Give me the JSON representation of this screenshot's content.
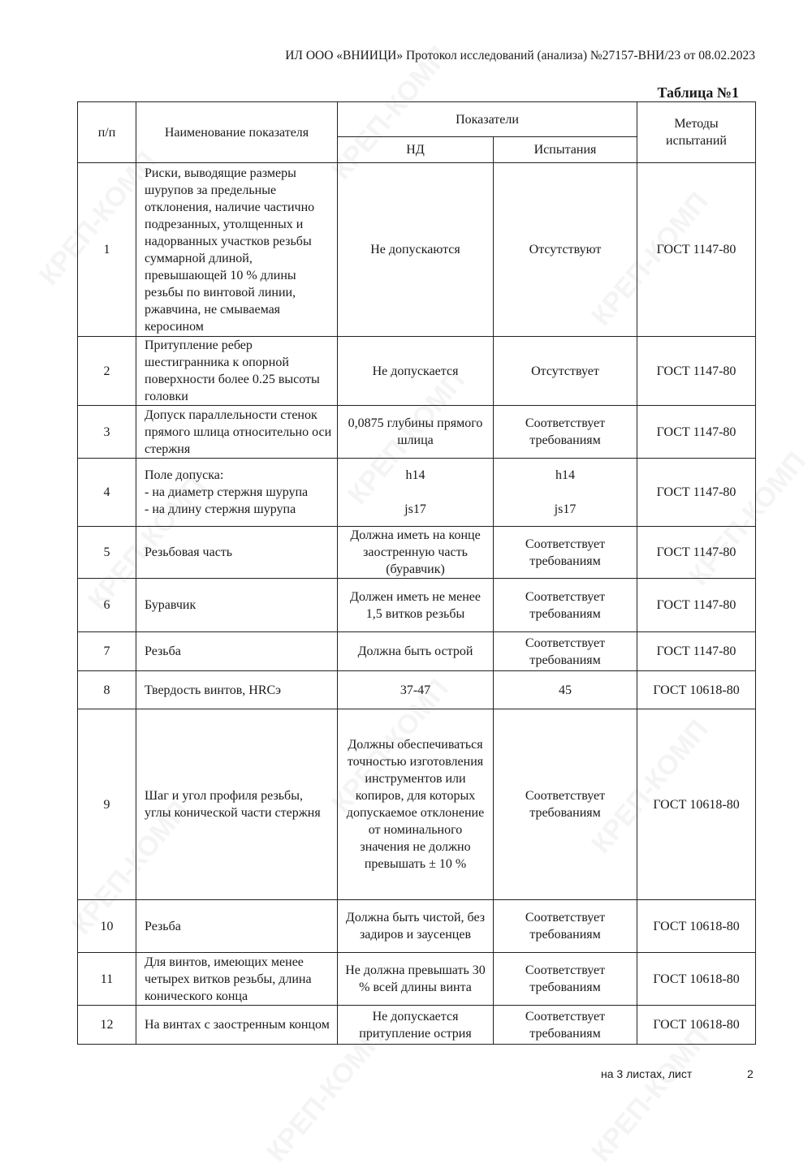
{
  "watermark": "КРЕП-КОМП",
  "header": "ИЛ ООО «ВНИИЦИ» Протокол исследований (анализа)  №27157-ВНИ/23 от  08.02.2023",
  "table_title": "Таблица №1",
  "columns": {
    "num": "п/п",
    "name": "Наименование показателя",
    "indicators": "Показатели",
    "nd": "НД",
    "test": "Испытания",
    "methods": "Методы испытаний"
  },
  "rows": [
    {
      "num": "1",
      "name": "Риски, выводящие размеры шурупов за предельные отклонения, наличие частично подрезанных, утолщенных и надорванных участков резьбы суммарной длиной, превышающей 10 % длины резьбы по винтовой линии, ржавчина, не смываемая керосином",
      "nd": "Не допускаются",
      "test": "Отсутствуют",
      "method": "ГОСТ 1147-80"
    },
    {
      "num": "2",
      "name": "Притупление ребер шестигранника к опорной поверхности более 0.25 высоты головки",
      "nd": "Не допускается",
      "test": "Отсутствует",
      "method": "ГОСТ 1147-80"
    },
    {
      "num": "3",
      "name": "Допуск параллельности стенок прямого шлица относительно оси стержня",
      "nd": "0,0875 глубины прямого шлица",
      "test": "Соответствует требованиям",
      "method": "ГОСТ 1147-80"
    },
    {
      "num": "4",
      "name": "Поле допуска:\n- на диаметр стержня шурупа\n- на длину стержня шурупа",
      "nd": "h14\n\njs17",
      "test": "h14\n\njs17",
      "method": "ГОСТ 1147-80"
    },
    {
      "num": "5",
      "name": "Резьбовая часть",
      "nd": "Должна иметь на конце заостренную часть (буравчик)",
      "test": "Соответствует требованиям",
      "method": "ГОСТ 1147-80"
    },
    {
      "num": "6",
      "name": "Буравчик",
      "nd": "Должен иметь не менее 1,5 витков резьбы",
      "test": "Соответствует требованиям",
      "method": "ГОСТ 1147-80"
    },
    {
      "num": "7",
      "name": "Резьба",
      "nd": "Должна быть острой",
      "test": "Соответствует требованиям",
      "method": "ГОСТ 1147-80"
    },
    {
      "num": "8",
      "name": "Твердость винтов, HRCэ",
      "nd": "37-47",
      "test": "45",
      "method": "ГОСТ 10618-80"
    },
    {
      "num": "9",
      "name": "Шаг и угол профиля резьбы, углы конической части стержня",
      "nd": "Должны обеспечиваться точностью изготовления инструментов или копиров, для которых допускаемое отклонение от номинального значения не должно превышать ± 10 %",
      "test": "Соответствует требованиям",
      "method": "ГОСТ 10618-80"
    },
    {
      "num": "10",
      "name": "Резьба",
      "nd": "Должна быть чистой, без задиров и заусенцев",
      "test": "Соответствует требованиям",
      "method": "ГОСТ 10618-80"
    },
    {
      "num": "11",
      "name": "Для винтов, имеющих менее четырех витков резьбы, длина конического конца",
      "nd": "Не должна превышать 30 % всей длины винта",
      "test": "Соответствует требованиям",
      "method": "ГОСТ 10618-80"
    },
    {
      "num": "12",
      "name": "На винтах с заостренным концом",
      "nd": "Не допускается притупление острия",
      "test": "Соответствует требованиям",
      "method": "ГОСТ 10618-80"
    }
  ],
  "footer": {
    "sheets": "на 3  листах, лист",
    "page": "2"
  }
}
